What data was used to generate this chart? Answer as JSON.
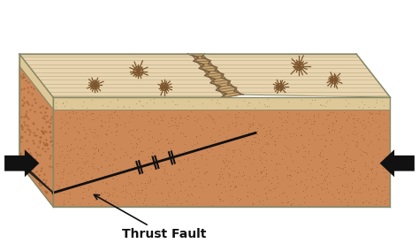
{
  "bg_color": "#ffffff",
  "top_color": "#e8d5b0",
  "top_line_color": "#c8b890",
  "side_tan_color": "#dfc090",
  "lower_sandy_color": "#cd8858",
  "dot_color": "#a06030",
  "fault_band_color": "#c8a870",
  "fault_hatch_color": "#907050",
  "wedge_color": "#d0d0c8",
  "arrow_color": "#111111",
  "outline_color": "#888866",
  "label_text": "Thrust Fault",
  "label_fontsize": 10,
  "label_fontweight": "bold",
  "thin_layer_color": "#dfc898",
  "crack_color": "#7a6040"
}
